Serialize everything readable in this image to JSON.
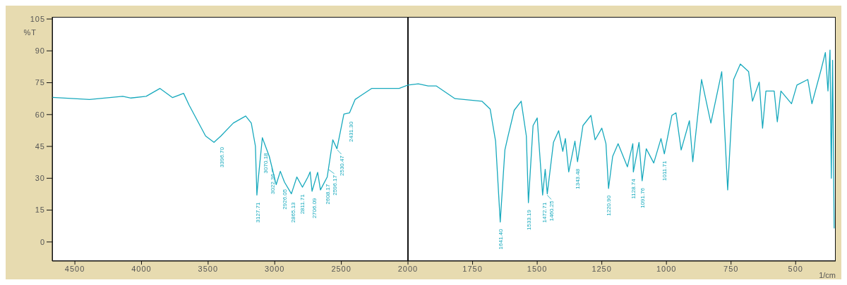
{
  "chart_data": [
    {
      "type": "line",
      "ylabel": "%T",
      "xlim": [
        4670,
        2000
      ],
      "xticks": [
        4500,
        4000,
        3500,
        3000,
        2500,
        2000
      ],
      "ylim": [
        -9,
        106
      ],
      "yticks": [
        105,
        90,
        75,
        60,
        45,
        30,
        15,
        0
      ],
      "grid": false,
      "legend": false,
      "marker": "none",
      "line_style": "solid",
      "x": [
        4670,
        4390,
        4141,
        4079,
        3965,
        3861,
        3767,
        3684,
        3643,
        3519,
        3456,
        3404,
        3311,
        3218,
        3176,
        3145,
        3134,
        3124,
        3093,
        3041,
        2989,
        2958,
        2927,
        2875,
        2834,
        2792,
        2751,
        2734,
        2720,
        2678,
        2657,
        2606,
        2564,
        2533,
        2481,
        2439,
        2397,
        2273,
        2066,
        2000
      ],
      "series": [
        {
          "color": "#17a9bd",
          "values": [
            68.1,
            67.1,
            68.6,
            67.8,
            68.6,
            72.3,
            68,
            70,
            64.5,
            49.9,
            46.9,
            49.9,
            56,
            59.3,
            56,
            45.1,
            22.1,
            29.4,
            49.1,
            40.3,
            27,
            33.3,
            28.2,
            22.7,
            30.6,
            25.8,
            30.6,
            33,
            23.9,
            32.8,
            24.5,
            30.6,
            48.1,
            43.9,
            60.2,
            60.8,
            67.1,
            72.3,
            72.3,
            73.9
          ]
        }
      ],
      "annotations": [
        {
          "text": "3396.70",
          "x": 3397,
          "y": 48
        },
        {
          "text": "3127.71",
          "x": 3128,
          "y": 22
        },
        {
          "text": "3070.18",
          "x": 3070,
          "y": 45.2
        },
        {
          "text": "3022.36",
          "x": 3022,
          "y": 35.4
        },
        {
          "text": "2926.05",
          "x": 2927,
          "y": 28.2
        },
        {
          "text": "2865.13",
          "x": 2865,
          "y": 22
        },
        {
          "text": "2811.71",
          "x": 2792,
          "y": 25.8
        },
        {
          "text": "2706.09",
          "x": 2706,
          "y": 24
        },
        {
          "text": "2608.17",
          "x": 2606,
          "y": 30.6
        },
        {
          "text": "2596.17",
          "x": 2596,
          "y": 34.8
        },
        {
          "text": "2530.47",
          "x": 2530,
          "y": 44
        },
        {
          "text": "2431.30",
          "x": 2431,
          "y": 60
        }
      ]
    },
    {
      "type": "line",
      "xlabel": "1/cm",
      "xlim": [
        2000,
        345
      ],
      "xticks": [
        1750,
        1500,
        1250,
        1000,
        750,
        500
      ],
      "ylim": [
        -9,
        106
      ],
      "yticks": [
        105,
        90,
        75,
        60,
        45,
        30,
        15,
        0
      ],
      "tick_labels": "x",
      "grid": false,
      "legend": false,
      "marker": "none",
      "line_style": "solid",
      "x": [
        2000,
        1960,
        1922,
        1891,
        1818,
        1714,
        1682,
        1661,
        1643,
        1625,
        1615,
        1589,
        1562,
        1542,
        1534,
        1516,
        1500,
        1479,
        1469,
        1461,
        1437,
        1417,
        1401,
        1391,
        1378,
        1354,
        1344,
        1323,
        1292,
        1276,
        1250,
        1234,
        1224,
        1208,
        1187,
        1151,
        1130,
        1128,
        1106,
        1094,
        1078,
        1049,
        1021,
        1008,
        979,
        963,
        943,
        911,
        898,
        864,
        828,
        807,
        786,
        763,
        740,
        714,
        682,
        667,
        641,
        628,
        615,
        583,
        571,
        557,
        516,
        495,
        453,
        437,
        401,
        385,
        375,
        367,
        362,
        357,
        351
      ],
      "series": [
        {
          "color": "#17a9bd",
          "values": [
            73.9,
            74.5,
            73.5,
            73.5,
            67.5,
            66.3,
            62.6,
            47.5,
            9.4,
            43.3,
            48.7,
            62,
            66.3,
            49.9,
            18.5,
            54.8,
            58.4,
            22.1,
            34.2,
            22.7,
            46.9,
            52.4,
            42.7,
            48.7,
            33,
            47.5,
            37.8,
            54.8,
            59.6,
            48.1,
            53.6,
            46.3,
            25.2,
            40.3,
            46.3,
            35.4,
            46.3,
            33,
            46.9,
            28.8,
            43.9,
            37.2,
            48.7,
            41.5,
            59.6,
            60.8,
            43.3,
            57.1,
            37.8,
            76.5,
            56,
            68.1,
            80.2,
            24.5,
            76.5,
            83.8,
            80.2,
            66.3,
            75.3,
            53.6,
            71.1,
            71.1,
            56.6,
            71.1,
            65.1,
            73.9,
            76.5,
            65.1,
            81.4,
            89.2,
            71.1,
            90.4,
            30,
            85.6,
            6.4
          ]
        }
      ],
      "annotations": [
        {
          "text": "1641.40",
          "x": 1643,
          "y": 9.4
        },
        {
          "text": "1533.19",
          "x": 1534,
          "y": 18.5
        },
        {
          "text": "1472.71",
          "x": 1473,
          "y": 22
        },
        {
          "text": "1460.25",
          "x": 1461,
          "y": 22.7
        },
        {
          "text": "1343.48",
          "x": 1344,
          "y": 37.8
        },
        {
          "text": "1220.90",
          "x": 1224,
          "y": 25.2
        },
        {
          "text": "1128.74",
          "x": 1128,
          "y": 33
        },
        {
          "text": "1091.76",
          "x": 1094,
          "y": 28.8
        },
        {
          "text": "1011.71",
          "x": 1008,
          "y": 41.5
        }
      ]
    }
  ]
}
